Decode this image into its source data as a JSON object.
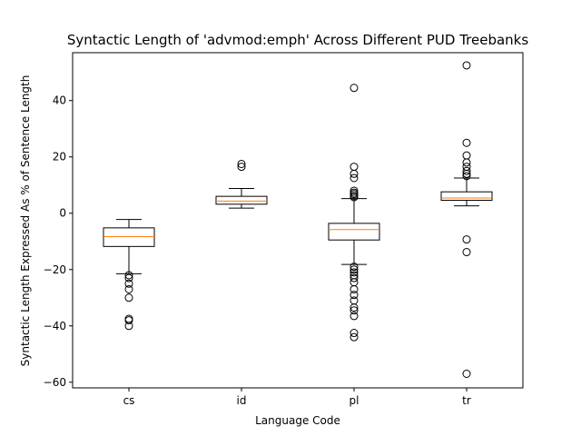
{
  "chart_data": {
    "type": "box",
    "title": "Syntactic Length of 'advmod:emph' Across Different PUD Treebanks",
    "xlabel": "Language Code",
    "ylabel": "Syntactic Length Expressed As % of Sentence Length",
    "ylim": [
      -62,
      57
    ],
    "yticks": [
      -60,
      -40,
      -20,
      0,
      20,
      40
    ],
    "grid": false,
    "colors": {
      "box": "#000000",
      "median": "#ff7f0e",
      "flier": "#000000"
    },
    "categories": [
      "cs",
      "id",
      "pl",
      "tr"
    ],
    "boxes": [
      {
        "label": "cs",
        "whisker_low": -21.5,
        "q1": -11.8,
        "median": -8.3,
        "q3": -5.2,
        "whisker_high": -2.2,
        "fliers": [
          -22.0,
          -23.0,
          -25.0,
          -27.0,
          -30.0,
          -37.5,
          -38.0,
          -40.0
        ]
      },
      {
        "label": "id",
        "whisker_low": 1.8,
        "q1": 3.2,
        "median": 4.3,
        "q3": 6.0,
        "whisker_high": 8.8,
        "fliers": [
          16.5,
          17.5
        ]
      },
      {
        "label": "pl",
        "whisker_low": -18.2,
        "q1": -9.5,
        "median": -5.8,
        "q3": -3.6,
        "whisker_high": 5.2,
        "fliers": [
          44.5,
          16.5,
          14.0,
          12.5,
          8.0,
          7.3,
          6.8,
          6.2,
          5.7,
          -19.0,
          -20.0,
          -21.0,
          -22.0,
          -23.0,
          -24.5,
          -27.0,
          -29.0,
          -31.0,
          -33.5,
          -34.5,
          -36.5,
          -42.5,
          -44.0
        ]
      },
      {
        "label": "tr",
        "whisker_low": 2.6,
        "q1": 4.6,
        "median": 5.4,
        "q3": 7.6,
        "whisker_high": 12.5,
        "fliers": [
          52.5,
          25.0,
          20.5,
          18.0,
          16.5,
          15.0,
          14.0,
          13.2,
          -9.3,
          -13.8,
          -57.0
        ]
      }
    ]
  }
}
